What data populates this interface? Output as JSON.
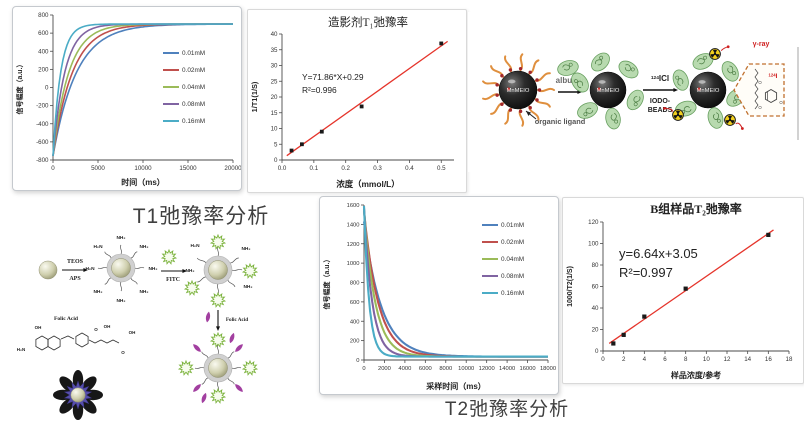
{
  "page": {
    "background": "#ffffff"
  },
  "labels": {
    "t1_analysis": "T1弛豫率分析",
    "t2_analysis": "T2弛豫率分析"
  },
  "chart_data": [
    {
      "id": "t1_signal_curves",
      "type": "line",
      "title": "",
      "xlabel": "时间（ms）",
      "ylabel": "信号幅度（a.u.）",
      "xlim": [
        0,
        20000
      ],
      "ylim": [
        -800,
        800
      ],
      "xticks": [
        0,
        5000,
        10000,
        15000,
        20000
      ],
      "yticks": [
        -800,
        -600,
        -400,
        -200,
        0,
        200,
        400,
        600,
        800
      ],
      "grid": false,
      "legend_position": "inside-right",
      "series_model": "y(t) = plateau + (start - plateau) * exp(-t/tau)",
      "series": [
        {
          "name": "0.01mM",
          "color": "#4F81BD",
          "start": -755,
          "plateau": 700,
          "tau_ms": 2600
        },
        {
          "name": "0.02mM",
          "color": "#C0504D",
          "start": -755,
          "plateau": 700,
          "tau_ms": 2150
        },
        {
          "name": "0.04mM",
          "color": "#9BBB59",
          "start": -755,
          "plateau": 700,
          "tau_ms": 1750
        },
        {
          "name": "0.08mM",
          "color": "#8064A2",
          "start": -755,
          "plateau": 700,
          "tau_ms": 1300
        },
        {
          "name": "0.16mM",
          "color": "#4BACC6",
          "start": -755,
          "plateau": 700,
          "tau_ms": 850
        }
      ]
    },
    {
      "id": "t1_relaxivity_fit",
      "type": "scatter",
      "title": "造影剂T₁弛豫率",
      "xlabel": "浓度（mmol/L）",
      "ylabel": "1/T1(1/S)",
      "xlim": [
        0,
        0.54
      ],
      "ylim": [
        0,
        40
      ],
      "xticks": [
        0,
        0.1,
        0.2,
        0.3,
        0.4,
        0.5
      ],
      "xtick_labels": [
        "0.0",
        "0.1",
        "0.2",
        "0.3",
        "0.4",
        "0.5"
      ],
      "yticks": [
        0,
        5,
        10,
        15,
        20,
        25,
        30,
        35,
        40
      ],
      "points": [
        [
          0.03,
          3
        ],
        [
          0.0625,
          5
        ],
        [
          0.125,
          9
        ],
        [
          0.25,
          17
        ],
        [
          0.5,
          37
        ]
      ],
      "fit": {
        "slope": 71.86,
        "intercept": 0.29,
        "color": "#e5342b",
        "x_range": [
          0.015,
          0.52
        ]
      },
      "equation": "Y=71.86*X+0.29",
      "r_squared": "R²=0.996",
      "marker_color": "#1a1a1a"
    },
    {
      "id": "t2_signal_curves",
      "type": "line",
      "title": "",
      "xlabel": "采样时间（ms）",
      "ylabel": "信号幅度（a.u.）",
      "xlim": [
        0,
        18000
      ],
      "ylim": [
        0,
        1600
      ],
      "xticks": [
        0,
        2000,
        4000,
        6000,
        8000,
        10000,
        12000,
        14000,
        16000,
        18000
      ],
      "yticks": [
        0,
        200,
        400,
        600,
        800,
        1000,
        1200,
        1400,
        1600
      ],
      "grid": false,
      "legend_position": "inside-right",
      "series_model": "y(t) = plateau + (start - plateau) * exp(-t/tau)",
      "series": [
        {
          "name": "0.01mM",
          "color": "#4F81BD",
          "start": 1430,
          "plateau": 35,
          "tau_ms": 1700
        },
        {
          "name": "0.02mM",
          "color": "#C0504D",
          "start": 1540,
          "plateau": 35,
          "tau_ms": 1400
        },
        {
          "name": "0.04mM",
          "color": "#9BBB59",
          "start": 1560,
          "plateau": 35,
          "tau_ms": 1100
        },
        {
          "name": "0.08mM",
          "color": "#8064A2",
          "start": 1575,
          "plateau": 35,
          "tau_ms": 800
        },
        {
          "name": "0.16mM",
          "color": "#4BACC6",
          "start": 1590,
          "plateau": 35,
          "tau_ms": 500
        }
      ]
    },
    {
      "id": "t2_relaxivity_fit",
      "type": "scatter",
      "title": "B组样品T₂弛豫率",
      "xlabel": "样品浓度/参考",
      "ylabel": "1000/T2(1/S)",
      "xlim": [
        0,
        18
      ],
      "ylim": [
        0,
        120
      ],
      "xticks": [
        0,
        2,
        4,
        6,
        8,
        10,
        12,
        14,
        16,
        18
      ],
      "yticks": [
        0,
        20,
        40,
        60,
        80,
        100,
        120
      ],
      "points": [
        [
          1,
          7
        ],
        [
          2,
          15
        ],
        [
          4,
          32
        ],
        [
          8,
          58
        ],
        [
          16,
          108
        ]
      ],
      "fit": {
        "slope": 6.64,
        "intercept": 3.05,
        "color": "#e5342b",
        "x_range": [
          0.6,
          16.5
        ]
      },
      "equation": "y=6.64x+3.05",
      "r_squared": "R²=0.997",
      "marker_color": "#1a1a1a"
    }
  ],
  "diagrams": {
    "iodination": {
      "particle_label": "MnMEIO",
      "organic_ligand": "organic ligand",
      "albumin": "albumin",
      "reagent_sup": "124",
      "reagent_main": "ICl",
      "beads_line1": "IODO-",
      "beads_line2": "BEADS",
      "gamma_ray": "γ-ray",
      "isotope_sup": "124",
      "isotope_main": "I",
      "colors": {
        "ligand": "#df8f3e",
        "ligand_dot": "#a2282d",
        "albumin_blob": "#b5d9ab",
        "albumin_edge": "#5f9a57",
        "radioactive": "#f1cf1f",
        "isotope_red": "#cf2020",
        "callout_box": "#c0702e"
      }
    },
    "synthesis": {
      "teos": "TEOS",
      "aps": "APS",
      "fitc": "FITC",
      "folic_acid": "Folic Acid",
      "folic_acid_step": "Folic Acid",
      "nh2": "NH₂",
      "h2n": "H₂N",
      "oh": "OH",
      "o": "O",
      "colors": {
        "starburst": "#7cb33e",
        "teardrop": "#a23fa0",
        "shell": "#cbcbcb",
        "flower_petal": "#171717",
        "flower_ring": "#5a51b5"
      }
    }
  }
}
